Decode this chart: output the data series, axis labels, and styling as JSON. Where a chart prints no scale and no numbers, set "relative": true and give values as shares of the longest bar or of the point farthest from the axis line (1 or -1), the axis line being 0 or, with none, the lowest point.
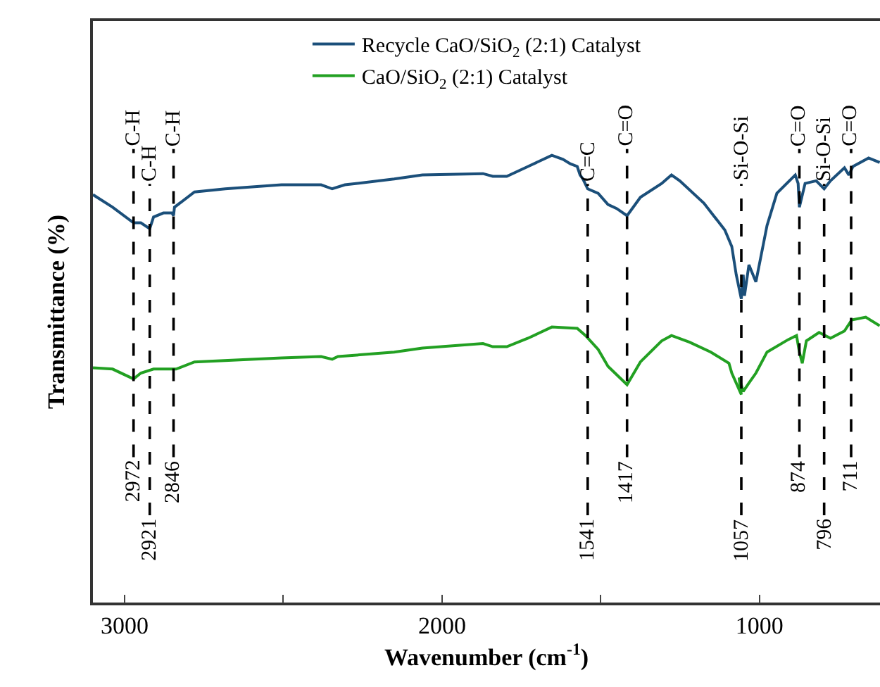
{
  "chart_data": {
    "type": "line",
    "xlabel": "Wavenumber (cm$^{-1}$)",
    "ylabel": "Transmittance (%)",
    "relative": true,
    "xlim": [
      3100,
      620
    ],
    "xticks": [
      3000,
      {
        "value": 2500,
        "label": null
      },
      2000,
      {
        "value": 1500,
        "label": null
      },
      1000
    ],
    "legend": "top",
    "grid": false,
    "series": [
      {
        "name": "Recycle CaO/SiO$_{2}$ (2:1) Catalyst",
        "color": "#1b4f7a",
        "x": [
          3100,
          3038,
          2972,
          2949,
          2921,
          2909,
          2878,
          2851,
          2846,
          2843,
          2780,
          2683,
          2506,
          2381,
          2346,
          2306,
          2151,
          2062,
          1871,
          1840,
          1796,
          1729,
          1654,
          1619,
          1596,
          1574,
          1565,
          1556,
          1541,
          1508,
          1477,
          1450,
          1417,
          1375,
          1308,
          1277,
          1251,
          1175,
          1109,
          1087,
          1073,
          1057,
          1051,
          1047,
          1033,
          1011,
          976,
          945,
          887,
          878,
          874,
          856,
          821,
          796,
          776,
          732,
          718,
          705,
          656,
          621
        ],
        "values": [
          0.912,
          0.884,
          0.849,
          0.849,
          0.836,
          0.862,
          0.871,
          0.871,
          0.865,
          0.884,
          0.918,
          0.925,
          0.934,
          0.934,
          0.925,
          0.934,
          0.947,
          0.956,
          0.959,
          0.953,
          0.953,
          0.975,
          1.0,
          0.991,
          0.981,
          0.975,
          0.956,
          0.947,
          0.925,
          0.915,
          0.89,
          0.881,
          0.865,
          0.906,
          0.937,
          0.956,
          0.943,
          0.893,
          0.833,
          0.796,
          0.733,
          0.679,
          0.733,
          0.686,
          0.755,
          0.717,
          0.843,
          0.915,
          0.956,
          0.937,
          0.884,
          0.937,
          0.943,
          0.925,
          0.943,
          0.972,
          0.956,
          0.975,
          0.994,
          0.984
        ]
      },
      {
        "name": "CaO/SiO$_{2}$ (2:1) Catalyst",
        "color": "#22a022",
        "x": [
          3100,
          3038,
          2972,
          2949,
          2909,
          2851,
          2838,
          2780,
          2506,
          2381,
          2346,
          2328,
          2151,
          2062,
          1871,
          1840,
          1796,
          1729,
          1654,
          1574,
          1548,
          1508,
          1477,
          1417,
          1375,
          1308,
          1277,
          1220,
          1153,
          1096,
          1087,
          1057,
          1064,
          1051,
          1033,
          1011,
          976,
          909,
          883,
          874,
          865,
          852,
          812,
          776,
          732,
          709,
          665,
          621
        ],
        "values": [
          0.525,
          0.522,
          0.5,
          0.513,
          0.522,
          0.522,
          0.522,
          0.538,
          0.547,
          0.55,
          0.544,
          0.55,
          0.56,
          0.569,
          0.579,
          0.572,
          0.572,
          0.591,
          0.616,
          0.613,
          0.597,
          0.566,
          0.528,
          0.487,
          0.538,
          0.585,
          0.597,
          0.582,
          0.56,
          0.535,
          0.513,
          0.465,
          0.503,
          0.472,
          0.491,
          0.513,
          0.56,
          0.588,
          0.597,
          0.56,
          0.535,
          0.585,
          0.604,
          0.591,
          0.607,
          0.632,
          0.638,
          0.619
        ]
      }
    ],
    "annotations": [
      "2972",
      "2921",
      "2846",
      "1541",
      "1417",
      "1057",
      "874",
      "796",
      "711"
    ],
    "ref_lines": [
      {
        "axis": "x",
        "value": 2972,
        "label": "C-H",
        "line_style": "dashed",
        "color": "#000000"
      },
      {
        "axis": "x",
        "value": 2921,
        "label": "C-H",
        "line_style": "dashed",
        "color": "#000000"
      },
      {
        "axis": "x",
        "value": 2846,
        "label": "C-H",
        "line_style": "dashed",
        "color": "#000000"
      },
      {
        "axis": "x",
        "value": 1541,
        "label": "C=C",
        "line_style": "dashed",
        "color": "#000000"
      },
      {
        "axis": "x",
        "value": 1417,
        "label": "C=O",
        "line_style": "dashed",
        "color": "#000000"
      },
      {
        "axis": "x",
        "value": 1057,
        "label": "Si-O-Si",
        "line_style": "dashed",
        "color": "#000000"
      },
      {
        "axis": "x",
        "value": 874,
        "label": "C=O",
        "line_style": "dashed",
        "color": "#000000"
      },
      {
        "axis": "x",
        "value": 796,
        "label": "Si-O-Si",
        "line_style": "dashed",
        "color": "#000000"
      },
      {
        "axis": "x",
        "value": 711,
        "label": "C=O",
        "line_style": "dashed",
        "color": "#000000"
      }
    ]
  }
}
